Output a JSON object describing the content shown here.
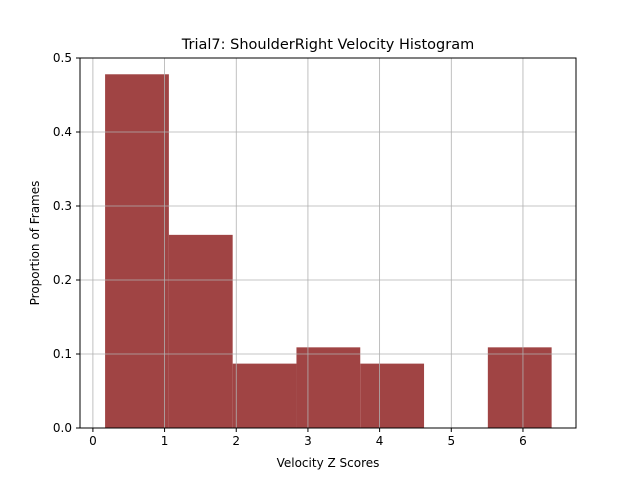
{
  "chart_data": {
    "type": "bar",
    "title": "Trial7: ShoulderRight Velocity Histogram",
    "xlabel": "Velocity Z Scores",
    "ylabel": "Proportion of Frames",
    "xlim": [
      -0.18,
      6.74
    ],
    "ylim": [
      0,
      0.5
    ],
    "grid": true,
    "bar_color": "#a04444",
    "bins": [
      {
        "x0": 0.17,
        "x1": 1.06,
        "value": 0.478
      },
      {
        "x0": 1.06,
        "x1": 1.95,
        "value": 0.261
      },
      {
        "x0": 1.95,
        "x1": 2.84,
        "value": 0.087
      },
      {
        "x0": 2.84,
        "x1": 3.73,
        "value": 0.109
      },
      {
        "x0": 3.73,
        "x1": 4.62,
        "value": 0.087
      },
      {
        "x0": 4.62,
        "x1": 5.51,
        "value": 0.0
      },
      {
        "x0": 5.51,
        "x1": 6.4,
        "value": 0.109
      }
    ],
    "xticks": [
      "0",
      "1",
      "2",
      "3",
      "4",
      "5",
      "6"
    ],
    "yticks": [
      "0.0",
      "0.1",
      "0.2",
      "0.3",
      "0.4",
      "0.5"
    ]
  }
}
